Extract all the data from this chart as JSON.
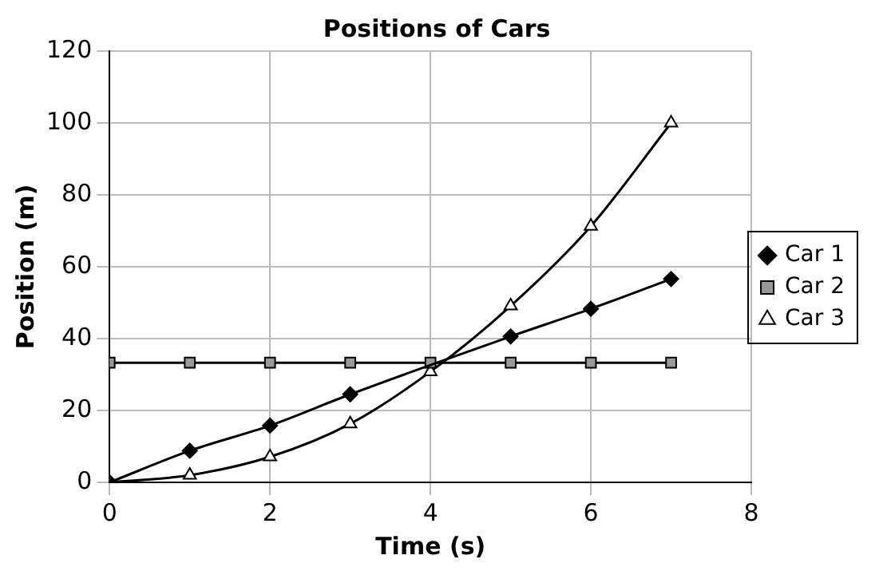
{
  "chart_data": {
    "type": "line",
    "title": "Positions of Cars",
    "xlabel": "Time (s)",
    "ylabel": "Position (m)",
    "x": [
      0,
      1,
      2,
      3,
      4,
      5,
      6,
      7
    ],
    "series": [
      {
        "name": "Car 1",
        "color": "#000000",
        "marker": "diamond",
        "values": [
          0,
          8.8,
          15.8,
          24.5,
          null,
          40.6,
          48.3,
          56.6
        ]
      },
      {
        "name": "Car 2",
        "color": "#999999",
        "marker": "square",
        "values": [
          33.3,
          33.3,
          33.3,
          33.3,
          33.3,
          33.3,
          33.3,
          33.3
        ]
      },
      {
        "name": "Car 3",
        "color": "#ffffff",
        "marker": "triangle",
        "values": [
          0,
          2,
          7.1,
          16.3,
          30.8,
          49.1,
          71.3,
          100
        ]
      }
    ],
    "xlim": [
      0,
      8
    ],
    "xticks": [
      0,
      2,
      4,
      6,
      8
    ],
    "ylim": [
      0,
      120
    ],
    "yticks": [
      0,
      20,
      40,
      60,
      80,
      100,
      120
    ],
    "grid": true,
    "legend": "right",
    "line_style": "solid"
  }
}
